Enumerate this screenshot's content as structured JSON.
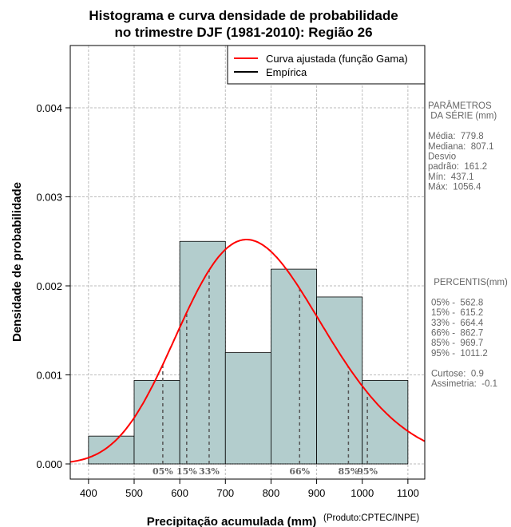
{
  "chart_data": {
    "type": "bar",
    "title": [
      "Histograma e curva densidade de probabilidade",
      "no trimestre DJF (1981-2010): Região 26"
    ],
    "xlabel": "Precipitação acumulada (mm)",
    "ylabel": "Densidade de probabilidade",
    "credit": "(Produto:CPTEC/INPE)",
    "xlim": [
      360,
      1137
    ],
    "ylim": [
      0,
      0.0047
    ],
    "xticks": [
      400,
      500,
      600,
      700,
      800,
      900,
      1000,
      1100
    ],
    "yticks": [
      0,
      0.001,
      0.002,
      0.003,
      0.004
    ],
    "ytick_labels": [
      "0.000",
      "0.001",
      "0.002",
      "0.003",
      "0.004"
    ],
    "bins": [
      400,
      500,
      600,
      700,
      800,
      900,
      1000,
      1100
    ],
    "density": [
      0.0003125,
      0.0009375,
      0.0025,
      0.00125,
      0.0021875,
      0.001875,
      0.0009375
    ],
    "bar_color": "#b3cdcd",
    "curve": {
      "type": "gamma",
      "mean": 779.8,
      "sd": 161.2,
      "color": "#ff0000"
    },
    "legend": [
      {
        "label": "Curva ajustada (função Gama)",
        "color": "#ff0000"
      },
      {
        "label": "Empírica",
        "color": "#000000"
      }
    ],
    "percentiles": [
      {
        "label": "05%",
        "value": 562.8
      },
      {
        "label": "15%",
        "value": 615.2
      },
      {
        "label": "33%",
        "value": 664.4
      },
      {
        "label": "66%",
        "value": 862.7
      },
      {
        "label": "85%",
        "value": 969.7
      },
      {
        "label": "95%",
        "value": 1011.2
      }
    ]
  },
  "side": {
    "params": [
      "PARÂMETROS",
      " DA SÉRIE (mm)",
      "",
      "Média:  779.8",
      "Mediana:  807.1",
      "Desvio",
      "padrão:  161.2",
      "Mín:  437.1",
      "Máx:  1056.4"
    ],
    "perc": [
      " PERCENTIS(mm)",
      "",
      "05% -  562.8",
      "15% -  615.2",
      "33% -  664.4",
      "66% -  862.7",
      "85% -  969.7",
      "95% -  1011.2",
      "",
      "Curtose:  0.9",
      "Assimetria:  -0.1"
    ]
  }
}
